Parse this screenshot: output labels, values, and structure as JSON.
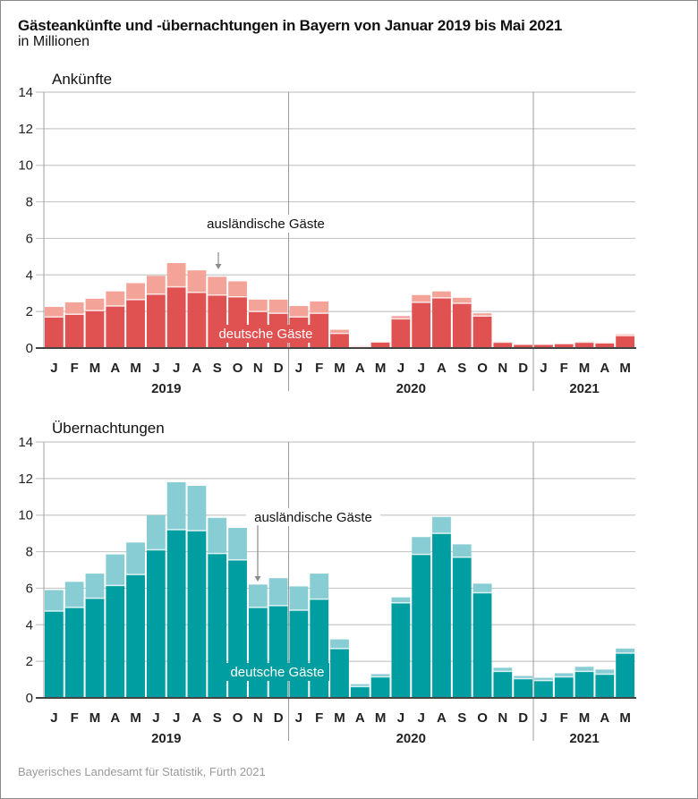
{
  "header": {
    "title": "Gästeankünfte und -übernachtungen in Bayern von Januar 2019 bis Mai 2021",
    "subtitle": "in Millionen"
  },
  "source": "Bayerisches Landesamt für Statistik, Fürth 2021",
  "colors": {
    "arrivals_domestic": "#e05252",
    "arrivals_foreign": "#f4a398",
    "nights_domestic": "#009ea1",
    "nights_foreign": "#88cdd3",
    "grid": "#c8c8c8",
    "axis": "#444444",
    "year_divider": "#9a9a9a"
  },
  "chart_data": [
    {
      "type": "bar",
      "stacked": true,
      "title": "Ankünfte",
      "xlabel": "",
      "ylabel": "",
      "ylim": [
        0,
        14
      ],
      "yticks": [
        0,
        2,
        4,
        6,
        8,
        10,
        12,
        14
      ],
      "grid": true,
      "categories": [
        "J",
        "F",
        "M",
        "A",
        "M",
        "J",
        "J",
        "A",
        "S",
        "O",
        "N",
        "D",
        "J",
        "F",
        "M",
        "A",
        "M",
        "J",
        "J",
        "A",
        "S",
        "O",
        "N",
        "D",
        "J",
        "F",
        "M",
        "A",
        "M"
      ],
      "years": [
        {
          "label": "2019",
          "months": 12
        },
        {
          "label": "2020",
          "months": 12
        },
        {
          "label": "2021",
          "months": 5
        }
      ],
      "series": [
        {
          "name": "deutsche Gäste",
          "values": [
            1.7,
            1.85,
            2.05,
            2.3,
            2.65,
            2.95,
            3.35,
            3.05,
            2.9,
            2.8,
            2.0,
            1.9,
            1.7,
            1.9,
            0.8,
            0.08,
            0.33,
            1.6,
            2.5,
            2.75,
            2.45,
            1.75,
            0.32,
            0.2,
            0.2,
            0.24,
            0.32,
            0.28,
            0.68
          ]
        },
        {
          "name": "ausländische Gäste",
          "values": [
            0.55,
            0.65,
            0.65,
            0.8,
            0.9,
            1.0,
            1.3,
            1.2,
            1.0,
            0.85,
            0.65,
            0.75,
            0.6,
            0.65,
            0.2,
            0.04,
            0.02,
            0.15,
            0.4,
            0.35,
            0.3,
            0.15,
            0.03,
            0.02,
            0.02,
            0.02,
            0.03,
            0.04,
            0.07
          ]
        }
      ],
      "annotations": [
        {
          "text": "ausländische Gäste",
          "type": "arrow",
          "target_index": 8
        },
        {
          "text": "deutsche Gäste",
          "type": "inside"
        }
      ]
    },
    {
      "type": "bar",
      "stacked": true,
      "title": "Übernachtungen",
      "xlabel": "",
      "ylabel": "",
      "ylim": [
        0,
        14
      ],
      "yticks": [
        0,
        2,
        4,
        6,
        8,
        10,
        12,
        14
      ],
      "grid": true,
      "categories": [
        "J",
        "F",
        "M",
        "A",
        "M",
        "J",
        "J",
        "A",
        "S",
        "O",
        "N",
        "D",
        "J",
        "F",
        "M",
        "A",
        "M",
        "J",
        "J",
        "A",
        "S",
        "O",
        "N",
        "D",
        "J",
        "F",
        "M",
        "A",
        "M"
      ],
      "years": [
        {
          "label": "2019",
          "months": 12
        },
        {
          "label": "2020",
          "months": 12
        },
        {
          "label": "2021",
          "months": 5
        }
      ],
      "series": [
        {
          "name": "deutsche Gäste",
          "values": [
            4.75,
            4.95,
            5.45,
            6.15,
            6.75,
            8.1,
            9.2,
            9.15,
            7.9,
            7.55,
            4.95,
            5.05,
            4.8,
            5.4,
            2.7,
            0.62,
            1.15,
            5.2,
            7.85,
            9.0,
            7.7,
            5.75,
            1.45,
            1.05,
            0.95,
            1.15,
            1.45,
            1.3,
            2.45
          ]
        },
        {
          "name": "ausländische Gäste",
          "values": [
            1.15,
            1.4,
            1.35,
            1.7,
            1.75,
            1.9,
            2.6,
            2.45,
            1.95,
            1.75,
            1.25,
            1.5,
            1.3,
            1.4,
            0.5,
            0.13,
            0.15,
            0.3,
            0.95,
            0.9,
            0.7,
            0.5,
            0.2,
            0.15,
            0.15,
            0.2,
            0.25,
            0.25,
            0.25
          ]
        }
      ],
      "annotations": [
        {
          "text": "ausländische Gäste",
          "type": "arrow",
          "target_index": 10
        },
        {
          "text": "deutsche Gäste",
          "type": "inside"
        }
      ]
    }
  ]
}
